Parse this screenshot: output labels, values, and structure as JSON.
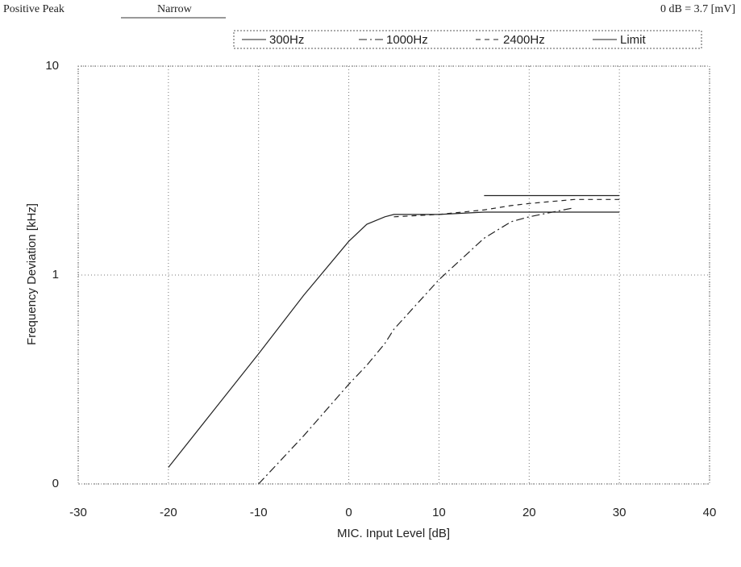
{
  "header": {
    "mode": "Positive Peak",
    "filter": "Narrow",
    "reference": "0 dB = 3.7 [mV]"
  },
  "chart_data": {
    "type": "line",
    "xlabel": "MIC. Input Level [dB]",
    "ylabel": "Frequency Deviation [kHz]",
    "x": [
      -20,
      -10,
      -5,
      0,
      2,
      4,
      5,
      10,
      15,
      18,
      20,
      25,
      30
    ],
    "series": [
      {
        "name": "300Hz",
        "color": "#222222",
        "dash": "none",
        "values": [
          0.12,
          0.42,
          0.8,
          1.45,
          1.75,
          1.9,
          1.95,
          1.95,
          2.0,
          2.0,
          2.0,
          2.0,
          2.0
        ]
      },
      {
        "name": "1000Hz",
        "color": "#222222",
        "dash": "10 4 2 4",
        "values": [
          null,
          0.1,
          0.17,
          0.3,
          0.37,
          0.47,
          0.55,
          0.95,
          1.5,
          1.8,
          1.9,
          2.1,
          null
        ]
      },
      {
        "name": "2400Hz",
        "color": "#222222",
        "dash": "6 5",
        "values": [
          null,
          null,
          null,
          null,
          null,
          null,
          1.9,
          1.95,
          2.05,
          2.15,
          2.2,
          2.3,
          2.3
        ]
      },
      {
        "name": "Limit",
        "color": "#222222",
        "dash": "none",
        "values": [
          null,
          null,
          null,
          null,
          null,
          null,
          null,
          null,
          2.4,
          2.4,
          2.4,
          2.4,
          2.4
        ]
      }
    ],
    "xlim": [
      -30,
      40
    ],
    "xticks": [
      -30,
      -20,
      -10,
      0,
      10,
      20,
      30,
      40
    ],
    "ylim": [
      0.1,
      10
    ],
    "yticks": [
      {
        "value": 0.1,
        "label": "0"
      },
      1,
      10
    ],
    "log_y": true,
    "grid": true
  }
}
